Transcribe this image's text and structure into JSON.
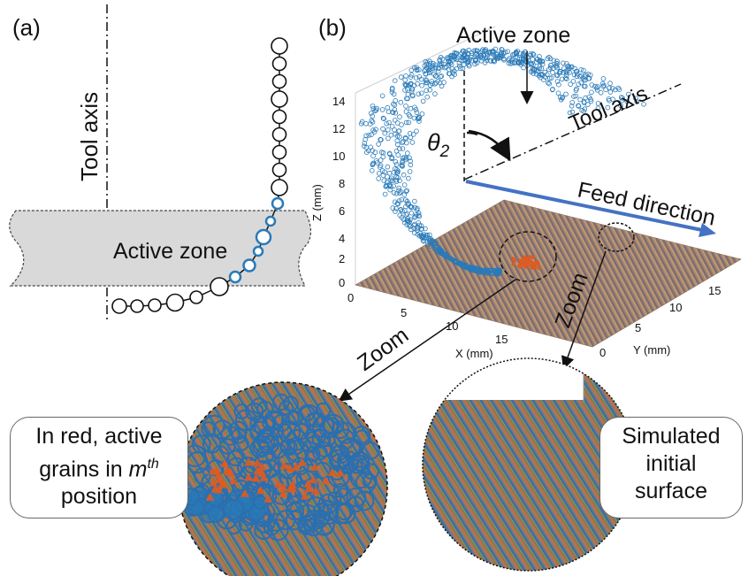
{
  "panel_a": {
    "label": "(a)",
    "tool_axis_label": "Tool axis",
    "active_zone_label": "Active zone"
  },
  "panel_b": {
    "label": "(b)",
    "active_zone_label": "Active zone",
    "tool_axis_label": "Tool axis",
    "angle_symbol": "θ",
    "angle_subscript": "2",
    "feed_label": "Feed direction",
    "z_axis_title": "Z (mm)",
    "x_axis_title": "X (mm)",
    "y_axis_title": "Y (mm)",
    "z_ticks": [
      "14",
      "12",
      "10",
      "8",
      "6",
      "4",
      "2",
      "0"
    ],
    "x_ticks": [
      "0",
      "5",
      "10",
      "15"
    ],
    "y_ticks": [
      "0",
      "5",
      "10",
      "15"
    ],
    "zoom_left": "Zoom",
    "zoom_right": "Zoom"
  },
  "callouts": {
    "left_line1": "In red, active",
    "left_line2_pre": "grains in ",
    "left_line2_m": "m",
    "left_line2_sup": "th",
    "left_line3": "position",
    "right_line1": "Simulated",
    "right_line2": "initial",
    "right_line3": "surface"
  },
  "colors": {
    "point_blue": "#2a7ab8",
    "arrow_blue": "#4472c4",
    "active_red": "#e05a20",
    "band_gray": "#d9d9d9",
    "surface_brown": "#9a7a62"
  }
}
